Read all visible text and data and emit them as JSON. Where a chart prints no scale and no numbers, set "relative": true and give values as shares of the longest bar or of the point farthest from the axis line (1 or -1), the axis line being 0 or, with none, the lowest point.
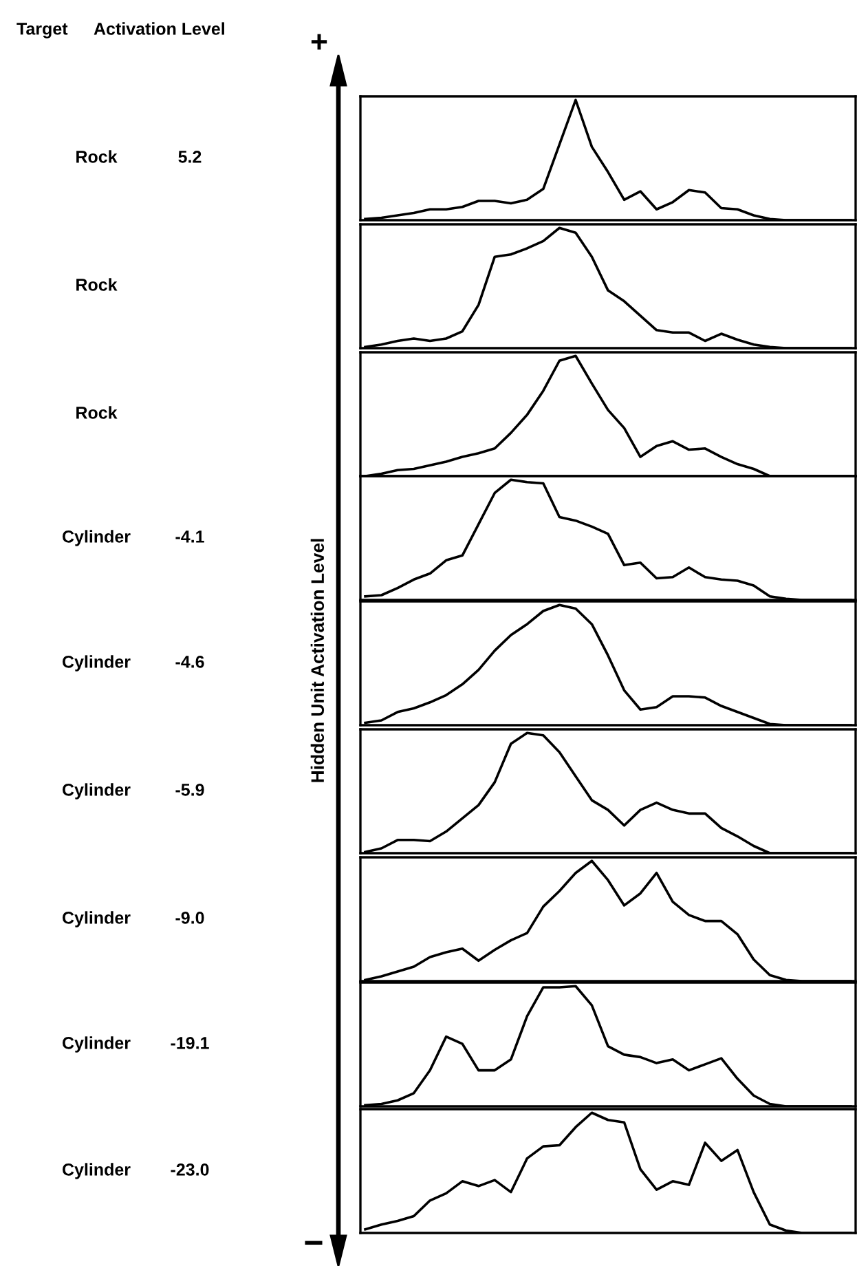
{
  "chart_data": [
    {
      "type": "other",
      "annotations": [
        "Target",
        "Activation Level",
        "+",
        "−"
      ],
      "ylabel": "Hidden Unit Activation Level"
    },
    {
      "type": "line",
      "relative": true,
      "annotations": [
        "Rock",
        "5.2"
      ],
      "categories": [
        null,
        null,
        null,
        null,
        null,
        null,
        null,
        null,
        null,
        null,
        null,
        null,
        null,
        null,
        null,
        null,
        null,
        null,
        null,
        null,
        null,
        null,
        null,
        null,
        null,
        null,
        null,
        null,
        null,
        null,
        null
      ],
      "series": [
        {
          "color": "#000000",
          "values": [
            0.01,
            0.02,
            0.04,
            0.06,
            0.09,
            0.09,
            0.11,
            0.16,
            0.16,
            0.14,
            0.17,
            0.26,
            0.63,
            1.0,
            0.61,
            0.4,
            0.17,
            0.24,
            0.09,
            0.15,
            0.25,
            0.23,
            0.1,
            0.09,
            0.04,
            0.01,
            0,
            0,
            0,
            0,
            0
          ]
        }
      ]
    },
    {
      "type": "line",
      "relative": true,
      "annotations": [
        "Rock"
      ],
      "categories": [
        null,
        null,
        null,
        null,
        null,
        null,
        null,
        null,
        null,
        null,
        null,
        null,
        null,
        null,
        null,
        null,
        null,
        null,
        null,
        null,
        null,
        null,
        null,
        null,
        null,
        null,
        null,
        null,
        null,
        null,
        null
      ],
      "series": [
        {
          "color": "#000000",
          "values": [
            0.01,
            0.03,
            0.06,
            0.08,
            0.06,
            0.08,
            0.14,
            0.36,
            0.76,
            0.78,
            0.83,
            0.89,
            1.0,
            0.96,
            0.76,
            0.48,
            0.39,
            0.27,
            0.15,
            0.13,
            0.13,
            0.06,
            0.12,
            0.07,
            0.03,
            0.01,
            0,
            0,
            0,
            0,
            0
          ]
        }
      ]
    },
    {
      "type": "line",
      "relative": true,
      "annotations": [
        "Rock"
      ],
      "categories": [
        null,
        null,
        null,
        null,
        null,
        null,
        null,
        null,
        null,
        null,
        null,
        null,
        null,
        null,
        null,
        null,
        null,
        null,
        null,
        null,
        null,
        null,
        null,
        null,
        null,
        null,
        null,
        null,
        null,
        null,
        null
      ],
      "series": [
        {
          "color": "#000000",
          "values": [
            0,
            0.02,
            0.05,
            0.06,
            0.09,
            0.12,
            0.16,
            0.19,
            0.23,
            0.36,
            0.51,
            0.71,
            0.96,
            1.0,
            0.77,
            0.55,
            0.4,
            0.16,
            0.25,
            0.29,
            0.22,
            0.23,
            0.16,
            0.1,
            0.06,
            0,
            0,
            0,
            0,
            0,
            0
          ]
        }
      ]
    },
    {
      "type": "line",
      "relative": true,
      "annotations": [
        "Cylinder",
        "-4.1"
      ],
      "categories": [
        null,
        null,
        null,
        null,
        null,
        null,
        null,
        null,
        null,
        null,
        null,
        null,
        null,
        null,
        null,
        null,
        null,
        null,
        null,
        null,
        null,
        null,
        null,
        null,
        null,
        null,
        null,
        null,
        null,
        null,
        null
      ],
      "series": [
        {
          "color": "#000000",
          "values": [
            0.03,
            0.04,
            0.1,
            0.17,
            0.22,
            0.33,
            0.37,
            0.63,
            0.89,
            1.0,
            0.98,
            0.97,
            0.69,
            0.66,
            0.61,
            0.55,
            0.29,
            0.31,
            0.18,
            0.19,
            0.27,
            0.19,
            0.17,
            0.16,
            0.12,
            0.03,
            0.01,
            0,
            0,
            0,
            0
          ]
        }
      ]
    },
    {
      "type": "line",
      "relative": true,
      "annotations": [
        "Cylinder",
        "-4.6"
      ],
      "categories": [
        null,
        null,
        null,
        null,
        null,
        null,
        null,
        null,
        null,
        null,
        null,
        null,
        null,
        null,
        null,
        null,
        null,
        null,
        null,
        null,
        null,
        null,
        null,
        null,
        null,
        null,
        null,
        null,
        null,
        null,
        null
      ],
      "series": [
        {
          "color": "#000000",
          "values": [
            0.02,
            0.04,
            0.11,
            0.14,
            0.19,
            0.25,
            0.34,
            0.46,
            0.62,
            0.75,
            0.84,
            0.95,
            1.0,
            0.97,
            0.84,
            0.58,
            0.29,
            0.13,
            0.15,
            0.24,
            0.24,
            0.23,
            0.16,
            0.11,
            0.06,
            0.01,
            0,
            0,
            0,
            0,
            0
          ]
        }
      ]
    },
    {
      "type": "line",
      "relative": true,
      "annotations": [
        "Cylinder",
        "-5.9"
      ],
      "categories": [
        null,
        null,
        null,
        null,
        null,
        null,
        null,
        null,
        null,
        null,
        null,
        null,
        null,
        null,
        null,
        null,
        null,
        null,
        null,
        null,
        null,
        null,
        null,
        null,
        null,
        null,
        null,
        null,
        null,
        null,
        null
      ],
      "series": [
        {
          "color": "#000000",
          "values": [
            0.01,
            0.04,
            0.11,
            0.11,
            0.1,
            0.18,
            0.29,
            0.4,
            0.59,
            0.91,
            1.0,
            0.98,
            0.84,
            0.64,
            0.44,
            0.36,
            0.23,
            0.36,
            0.42,
            0.36,
            0.33,
            0.33,
            0.21,
            0.14,
            0.06,
            0,
            0,
            0,
            0,
            0,
            0
          ]
        }
      ]
    },
    {
      "type": "line",
      "relative": true,
      "annotations": [
        "Cylinder",
        "-9.0"
      ],
      "categories": [
        null,
        null,
        null,
        null,
        null,
        null,
        null,
        null,
        null,
        null,
        null,
        null,
        null,
        null,
        null,
        null,
        null,
        null,
        null,
        null,
        null,
        null,
        null,
        null,
        null,
        null,
        null,
        null,
        null,
        null,
        null
      ],
      "series": [
        {
          "color": "#000000",
          "values": [
            0.01,
            0.04,
            0.08,
            0.12,
            0.2,
            0.24,
            0.27,
            0.17,
            0.26,
            0.34,
            0.4,
            0.62,
            0.75,
            0.9,
            1.0,
            0.84,
            0.63,
            0.73,
            0.9,
            0.66,
            0.55,
            0.5,
            0.5,
            0.39,
            0.18,
            0.05,
            0.01,
            0,
            0,
            0,
            0
          ]
        }
      ]
    },
    {
      "type": "line",
      "relative": true,
      "annotations": [
        "Cylinder",
        "-19.1"
      ],
      "categories": [
        null,
        null,
        null,
        null,
        null,
        null,
        null,
        null,
        null,
        null,
        null,
        null,
        null,
        null,
        null,
        null,
        null,
        null,
        null,
        null,
        null,
        null,
        null,
        null,
        null,
        null,
        null,
        null,
        null,
        null,
        null
      ],
      "series": [
        {
          "color": "#000000",
          "values": [
            0.01,
            0.02,
            0.05,
            0.11,
            0.3,
            0.58,
            0.52,
            0.3,
            0.3,
            0.39,
            0.75,
            0.99,
            0.99,
            1.0,
            0.84,
            0.5,
            0.43,
            0.41,
            0.36,
            0.39,
            0.3,
            0.35,
            0.4,
            0.23,
            0.09,
            0.02,
            0,
            0,
            0,
            0,
            0
          ]
        }
      ]
    },
    {
      "type": "line",
      "relative": true,
      "annotations": [
        "Cylinder",
        "-23.0"
      ],
      "categories": [
        null,
        null,
        null,
        null,
        null,
        null,
        null,
        null,
        null,
        null,
        null,
        null,
        null,
        null,
        null,
        null,
        null,
        null,
        null,
        null,
        null,
        null,
        null,
        null,
        null,
        null,
        null,
        null,
        null,
        null,
        null
      ],
      "series": [
        {
          "color": "#000000",
          "values": [
            0.03,
            0.07,
            0.1,
            0.14,
            0.27,
            0.33,
            0.43,
            0.39,
            0.44,
            0.34,
            0.62,
            0.72,
            0.73,
            0.88,
            1.0,
            0.94,
            0.92,
            0.53,
            0.36,
            0.43,
            0.4,
            0.75,
            0.6,
            0.69,
            0.34,
            0.07,
            0.02,
            0,
            0,
            0,
            0
          ]
        }
      ]
    }
  ]
}
